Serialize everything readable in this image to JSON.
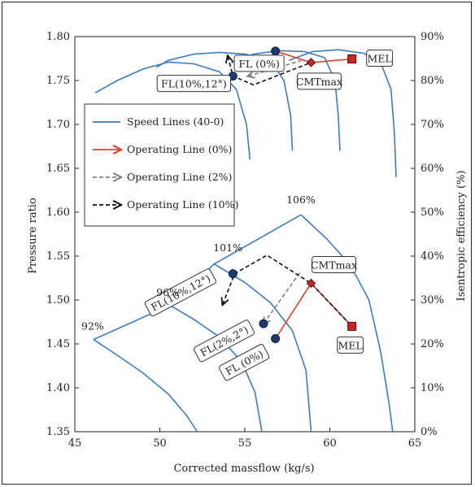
{
  "chart_data": {
    "type": "line",
    "xlabel": "Corrected massflow (kg/s)",
    "ylabel": "Pressure ratio",
    "y2label": "Isentropic efficiency (%)",
    "xlim": [
      45,
      65
    ],
    "ylim": [
      1.35,
      1.8
    ],
    "y2lim": [
      0,
      90
    ],
    "x_ticks": [
      45,
      50,
      55,
      60,
      65
    ],
    "y_ticks": [
      1.35,
      1.4,
      1.45,
      1.5,
      1.55,
      1.6,
      1.65,
      1.7,
      1.75,
      1.8
    ],
    "y_tick_labels": [
      "1.35",
      "1.40",
      "1.45",
      "1.50",
      "1.55",
      "1.60",
      "1.65",
      "1.70",
      "1.75",
      "1.80"
    ],
    "y2_ticks": [
      0,
      10,
      20,
      30,
      40,
      50,
      60,
      70,
      80,
      90
    ],
    "y2_tick_labels": [
      "0%",
      "10%",
      "20%",
      "30%",
      "40%",
      "50%",
      "60%",
      "70%",
      "80%",
      "90%"
    ],
    "grid": false,
    "legend": {
      "position": "left-middle",
      "entries": [
        "Speed Lines (40-0)",
        "Operating Line (0%)",
        "Operating Line (2%)",
        "Operating Line (10%)"
      ]
    },
    "colors": {
      "speed": "#3a7cc4",
      "op0": "#e23b2e",
      "op2": "#808080",
      "op10": "#111111",
      "marker_blue": "#1f3a6e"
    },
    "speed_pr_curves": [
      {
        "label": "92%",
        "points": [
          [
            46.1,
            1.455
          ],
          [
            47.5,
            1.437
          ],
          [
            49.0,
            1.417
          ],
          [
            50.5,
            1.393
          ],
          [
            51.6,
            1.368
          ],
          [
            52.2,
            1.35
          ]
        ]
      },
      {
        "label": "96%",
        "points": [
          [
            50.6,
            1.494
          ],
          [
            52.0,
            1.478
          ],
          [
            53.5,
            1.458
          ],
          [
            54.8,
            1.43
          ],
          [
            55.6,
            1.395
          ],
          [
            56.0,
            1.35
          ]
        ]
      },
      {
        "label": "101%",
        "points": [
          [
            53.2,
            1.541
          ],
          [
            55.0,
            1.52
          ],
          [
            56.5,
            1.497
          ],
          [
            57.8,
            1.465
          ],
          [
            58.6,
            1.42
          ],
          [
            58.9,
            1.35
          ]
        ]
      },
      {
        "label": "106%",
        "points": [
          [
            58.3,
            1.597
          ],
          [
            59.8,
            1.57
          ],
          [
            61.2,
            1.54
          ],
          [
            62.3,
            1.5
          ],
          [
            63.0,
            1.44
          ],
          [
            63.5,
            1.38
          ],
          [
            63.7,
            1.35
          ]
        ]
      }
    ],
    "surge_line": [
      [
        46.1,
        1.455
      ],
      [
        50.6,
        1.494
      ],
      [
        53.2,
        1.541
      ],
      [
        58.3,
        1.597
      ]
    ],
    "speed_eff_curves": [
      [
        [
          46.2,
          77.2
        ],
        [
          47.5,
          80.0
        ],
        [
          49.0,
          82.6
        ],
        [
          50.5,
          84.2
        ],
        [
          52.0,
          83.8
        ],
        [
          53.5,
          82.0
        ],
        [
          54.5,
          78.0
        ],
        [
          55.1,
          70.0
        ],
        [
          55.3,
          62.0
        ]
      ],
      [
        [
          49.8,
          83.0
        ],
        [
          50.5,
          84.6
        ],
        [
          52.0,
          86.0
        ],
        [
          53.5,
          86.4
        ],
        [
          55.0,
          86.0
        ],
        [
          56.5,
          84.6
        ],
        [
          57.3,
          80.0
        ],
        [
          57.7,
          72.0
        ],
        [
          57.8,
          64.0
        ]
      ],
      [
        [
          54.2,
          84.0
        ],
        [
          55.5,
          86.0
        ],
        [
          57.0,
          86.8
        ],
        [
          58.5,
          86.6
        ],
        [
          59.7,
          85.2
        ],
        [
          60.3,
          80.0
        ],
        [
          60.5,
          72.0
        ],
        [
          60.6,
          64.0
        ]
      ],
      [
        [
          57.6,
          84.6
        ],
        [
          59.0,
          86.6
        ],
        [
          60.5,
          87.0
        ],
        [
          62.0,
          86.2
        ],
        [
          63.0,
          84.0
        ],
        [
          63.6,
          78.0
        ],
        [
          63.8,
          68.0
        ],
        [
          63.9,
          58.0
        ]
      ]
    ],
    "operating_lines": [
      {
        "name": "Operating Line (0%)",
        "pr_points": [
          [
            56.8,
            1.456
          ],
          [
            58.9,
            1.519
          ],
          [
            61.3,
            1.47
          ]
        ],
        "eff_points": [
          [
            56.8,
            86.7
          ],
          [
            58.9,
            84.1
          ],
          [
            61.3,
            84.9
          ]
        ]
      },
      {
        "name": "Operating Line (2%)",
        "pr_points": [
          [
            56.1,
            1.473
          ],
          [
            58.3,
            1.533
          ]
        ],
        "eff_points": [
          [
            55.2,
            81.0
          ],
          [
            58.3,
            84.5
          ]
        ]
      },
      {
        "name": "Operating Line (10%)",
        "pr_points": [
          [
            53.7,
            1.495
          ],
          [
            54.4,
            1.53
          ],
          [
            56.3,
            1.551
          ],
          [
            58.9,
            1.519
          ],
          [
            61.3,
            1.47
          ]
        ],
        "eff_points": [
          [
            54.0,
            85.5
          ],
          [
            54.3,
            81.0
          ],
          [
            55.5,
            79.0
          ],
          [
            57.5,
            82.0
          ],
          [
            58.9,
            84.1
          ]
        ]
      }
    ],
    "markers": [
      {
        "label": "FL(10%,12°)",
        "type": "circle",
        "axis": "pr",
        "x": 54.3,
        "y": 1.53
      },
      {
        "label": "FL(2%,2°)",
        "type": "circle",
        "axis": "pr",
        "x": 56.1,
        "y": 1.473
      },
      {
        "label": "FL (0%)",
        "type": "circle",
        "axis": "pr",
        "x": 56.8,
        "y": 1.456
      },
      {
        "label": "CMTmax",
        "type": "diamond",
        "axis": "pr",
        "x": 58.9,
        "y": 1.519
      },
      {
        "label": "MEL",
        "type": "square",
        "axis": "pr",
        "x": 61.3,
        "y": 1.47
      },
      {
        "label": "FL(10%,12°)",
        "type": "circle",
        "axis": "eff",
        "x": 54.3,
        "y": 81.0
      },
      {
        "label": "FL (0%)",
        "type": "circle",
        "axis": "eff",
        "x": 56.8,
        "y": 86.7
      },
      {
        "label": "CMTmax",
        "type": "diamond",
        "axis": "eff",
        "x": 58.9,
        "y": 84.1
      },
      {
        "label": "MEL",
        "type": "square",
        "axis": "eff",
        "x": 61.3,
        "y": 84.9
      }
    ],
    "annotations": {
      "speed_labels": [
        "92%",
        "96%",
        "101%",
        "106%"
      ],
      "fl_10_top": "FL(10%,12°)",
      "fl_0_top": "FL (0%)",
      "cmt_top": "CMTmax",
      "mel_top": "MEL",
      "fl_10_bot": "FL(10%,12°)",
      "fl_2_bot": "FL(2%,2°)",
      "fl_0_bot": "FL (0%)",
      "cmt_bot": "CMTmax",
      "mel_bot": "MEL"
    }
  }
}
